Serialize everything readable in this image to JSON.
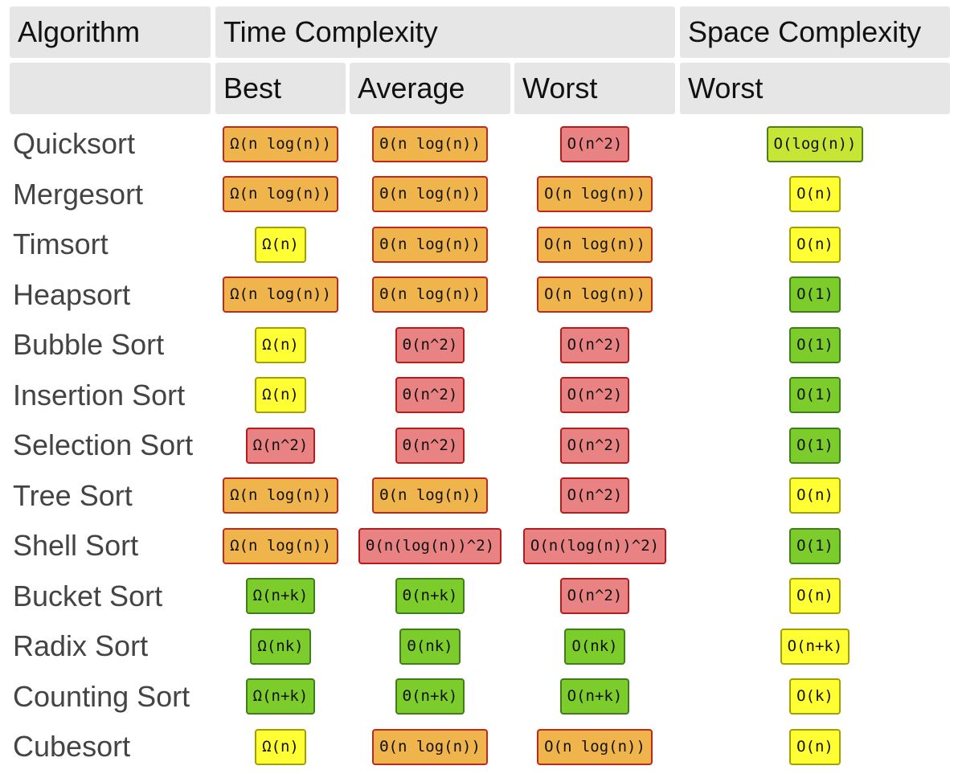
{
  "header": {
    "row1": [
      "Algorithm",
      "Time Complexity",
      "Space Complexity"
    ],
    "row2": [
      "Best",
      "Average",
      "Worst",
      "Worst"
    ]
  },
  "rows": [
    {
      "name": "Quicksort",
      "cells": [
        {
          "text": "Ω(n log(n))",
          "color": "#f0b44c",
          "border": "#c0281c"
        },
        {
          "text": "Θ(n log(n))",
          "color": "#f0b44c",
          "border": "#c0281c"
        },
        {
          "text": "O(n^2)",
          "color": "#e98383",
          "border": "#b71c1c"
        },
        {
          "text": "O(log(n))",
          "color": "#c6e535",
          "border": "#4f7f1a"
        }
      ]
    },
    {
      "name": "Mergesort",
      "cells": [
        {
          "text": "Ω(n log(n))",
          "color": "#f0b44c",
          "border": "#c0281c"
        },
        {
          "text": "Θ(n log(n))",
          "color": "#f0b44c",
          "border": "#c0281c"
        },
        {
          "text": "O(n log(n))",
          "color": "#f0b44c",
          "border": "#c0281c"
        },
        {
          "text": "O(n)",
          "color": "#ffff33",
          "border": "#a0a000"
        }
      ]
    },
    {
      "name": "Timsort",
      "cells": [
        {
          "text": "Ω(n)",
          "color": "#ffff33",
          "border": "#a0a000"
        },
        {
          "text": "Θ(n log(n))",
          "color": "#f0b44c",
          "border": "#c0281c"
        },
        {
          "text": "O(n log(n))",
          "color": "#f0b44c",
          "border": "#c0281c"
        },
        {
          "text": "O(n)",
          "color": "#ffff33",
          "border": "#a0a000"
        }
      ]
    },
    {
      "name": "Heapsort",
      "cells": [
        {
          "text": "Ω(n log(n))",
          "color": "#f0b44c",
          "border": "#c0281c"
        },
        {
          "text": "Θ(n log(n))",
          "color": "#f0b44c",
          "border": "#c0281c"
        },
        {
          "text": "O(n log(n))",
          "color": "#f0b44c",
          "border": "#c0281c"
        },
        {
          "text": "O(1)",
          "color": "#7ccd2c",
          "border": "#3f7f1a"
        }
      ]
    },
    {
      "name": "Bubble Sort",
      "cells": [
        {
          "text": "Ω(n)",
          "color": "#ffff33",
          "border": "#a0a000"
        },
        {
          "text": "Θ(n^2)",
          "color": "#e98383",
          "border": "#b71c1c"
        },
        {
          "text": "O(n^2)",
          "color": "#e98383",
          "border": "#b71c1c"
        },
        {
          "text": "O(1)",
          "color": "#7ccd2c",
          "border": "#3f7f1a"
        }
      ]
    },
    {
      "name": "Insertion Sort",
      "cells": [
        {
          "text": "Ω(n)",
          "color": "#ffff33",
          "border": "#a0a000"
        },
        {
          "text": "Θ(n^2)",
          "color": "#e98383",
          "border": "#b71c1c"
        },
        {
          "text": "O(n^2)",
          "color": "#e98383",
          "border": "#b71c1c"
        },
        {
          "text": "O(1)",
          "color": "#7ccd2c",
          "border": "#3f7f1a"
        }
      ]
    },
    {
      "name": "Selection Sort",
      "cells": [
        {
          "text": "Ω(n^2)",
          "color": "#e98383",
          "border": "#b71c1c"
        },
        {
          "text": "Θ(n^2)",
          "color": "#e98383",
          "border": "#b71c1c"
        },
        {
          "text": "O(n^2)",
          "color": "#e98383",
          "border": "#b71c1c"
        },
        {
          "text": "O(1)",
          "color": "#7ccd2c",
          "border": "#3f7f1a"
        }
      ]
    },
    {
      "name": "Tree Sort",
      "cells": [
        {
          "text": "Ω(n log(n))",
          "color": "#f0b44c",
          "border": "#c0281c"
        },
        {
          "text": "Θ(n log(n))",
          "color": "#f0b44c",
          "border": "#c0281c"
        },
        {
          "text": "O(n^2)",
          "color": "#e98383",
          "border": "#b71c1c"
        },
        {
          "text": "O(n)",
          "color": "#ffff33",
          "border": "#a0a000"
        }
      ]
    },
    {
      "name": "Shell Sort",
      "cells": [
        {
          "text": "Ω(n log(n))",
          "color": "#f0b44c",
          "border": "#c0281c"
        },
        {
          "text": "Θ(n(log(n))^2)",
          "color": "#e98383",
          "border": "#b71c1c"
        },
        {
          "text": "O(n(log(n))^2)",
          "color": "#e98383",
          "border": "#b71c1c"
        },
        {
          "text": "O(1)",
          "color": "#7ccd2c",
          "border": "#3f7f1a"
        }
      ]
    },
    {
      "name": "Bucket Sort",
      "cells": [
        {
          "text": "Ω(n+k)",
          "color": "#7ccd2c",
          "border": "#3f7f1a"
        },
        {
          "text": "Θ(n+k)",
          "color": "#7ccd2c",
          "border": "#3f7f1a"
        },
        {
          "text": "O(n^2)",
          "color": "#e98383",
          "border": "#b71c1c"
        },
        {
          "text": "O(n)",
          "color": "#ffff33",
          "border": "#a0a000"
        }
      ]
    },
    {
      "name": "Radix Sort",
      "cells": [
        {
          "text": "Ω(nk)",
          "color": "#7ccd2c",
          "border": "#3f7f1a"
        },
        {
          "text": "Θ(nk)",
          "color": "#7ccd2c",
          "border": "#3f7f1a"
        },
        {
          "text": "O(nk)",
          "color": "#7ccd2c",
          "border": "#3f7f1a"
        },
        {
          "text": "O(n+k)",
          "color": "#ffff33",
          "border": "#a0a000"
        }
      ]
    },
    {
      "name": "Counting Sort",
      "cells": [
        {
          "text": "Ω(n+k)",
          "color": "#7ccd2c",
          "border": "#3f7f1a"
        },
        {
          "text": "Θ(n+k)",
          "color": "#7ccd2c",
          "border": "#3f7f1a"
        },
        {
          "text": "O(n+k)",
          "color": "#7ccd2c",
          "border": "#3f7f1a"
        },
        {
          "text": "O(k)",
          "color": "#ffff33",
          "border": "#a0a000"
        }
      ]
    },
    {
      "name": "Cubesort",
      "cells": [
        {
          "text": "Ω(n)",
          "color": "#ffff33",
          "border": "#a0a000"
        },
        {
          "text": "Θ(n log(n))",
          "color": "#f0b44c",
          "border": "#c0281c"
        },
        {
          "text": "O(n log(n))",
          "color": "#f0b44c",
          "border": "#c0281c"
        },
        {
          "text": "O(n)",
          "color": "#ffff33",
          "border": "#a0a000"
        }
      ]
    }
  ]
}
